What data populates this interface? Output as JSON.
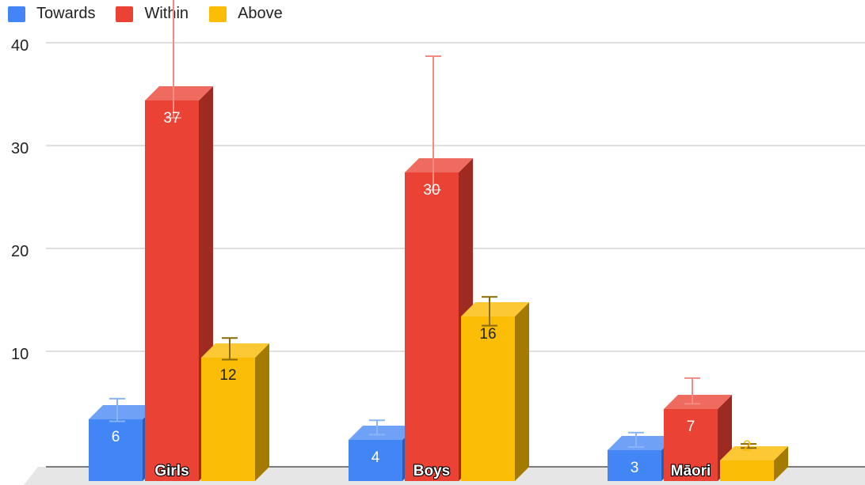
{
  "chart_data": {
    "type": "bar",
    "categories": [
      "Girls",
      "Boys",
      "Māori"
    ],
    "series": [
      {
        "name": "Towards",
        "values": [
          6,
          4,
          3
        ],
        "color": "#4285f4",
        "side_color": "#2a5db3",
        "top_color": "#6fa2f7",
        "error_color": "#8ab4f8",
        "label_color": "#ffffff"
      },
      {
        "name": "Within",
        "values": [
          37,
          30,
          7
        ],
        "color": "#ea4335",
        "side_color": "#9e2a22",
        "top_color": "#ef6a5f",
        "error_color": "#f28b82",
        "label_color": "#ffffff"
      },
      {
        "name": "Above",
        "values": [
          12,
          16,
          2
        ],
        "color": "#fbbc04",
        "side_color": "#a57a00",
        "top_color": "#fcc934",
        "error_color": "#8a6a00",
        "label_color": "#222222"
      }
    ],
    "data_labels": [
      [
        "6",
        "4",
        "3"
      ],
      [
        "37",
        "30",
        "7"
      ],
      [
        "12",
        "16",
        "2"
      ]
    ],
    "error_bars": [
      [
        [
          5.5,
          7.7
        ],
        [
          4.2,
          5.6
        ],
        [
          3.0,
          4.4
        ]
      ],
      [
        [
          35,
          49
        ],
        [
          28,
          41
        ],
        [
          7.2,
          9.7
        ]
      ],
      [
        [
          11.5,
          13.6
        ],
        [
          14.8,
          17.6
        ],
        [
          2.9,
          3.3
        ]
      ]
    ],
    "y_ticks": [
      "10",
      "20",
      "30",
      "40"
    ],
    "ylim": [
      0,
      40
    ],
    "grid": true,
    "legend_position": "top-left",
    "three_d": true
  }
}
